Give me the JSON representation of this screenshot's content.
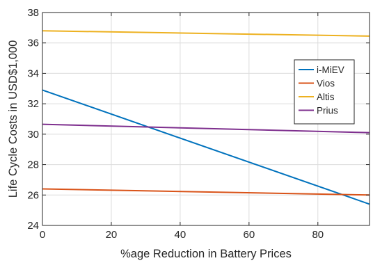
{
  "chart_data": {
    "type": "line",
    "title": "",
    "xlabel": "%age Reduction in Battery Prices",
    "ylabel": "Life Cycle Costs in USD$1,000",
    "xlim": [
      0,
      95
    ],
    "ylim": [
      24,
      38
    ],
    "xticks": [
      0,
      20,
      40,
      60,
      80
    ],
    "yticks": [
      24,
      26,
      28,
      30,
      32,
      34,
      36,
      38
    ],
    "grid": true,
    "legend_position": "right",
    "series": [
      {
        "name": "i-MiEV",
        "color": "#0072BD",
        "x": [
          0,
          95
        ],
        "y": [
          32.9,
          25.4
        ]
      },
      {
        "name": "Vios",
        "color": "#D95319",
        "x": [
          0,
          95
        ],
        "y": [
          26.4,
          26.0
        ]
      },
      {
        "name": "Altis",
        "color": "#EDB120",
        "x": [
          0,
          95
        ],
        "y": [
          36.8,
          36.45
        ]
      },
      {
        "name": "Prius",
        "color": "#7E2F8E",
        "x": [
          0,
          95
        ],
        "y": [
          30.65,
          30.1
        ]
      }
    ]
  }
}
